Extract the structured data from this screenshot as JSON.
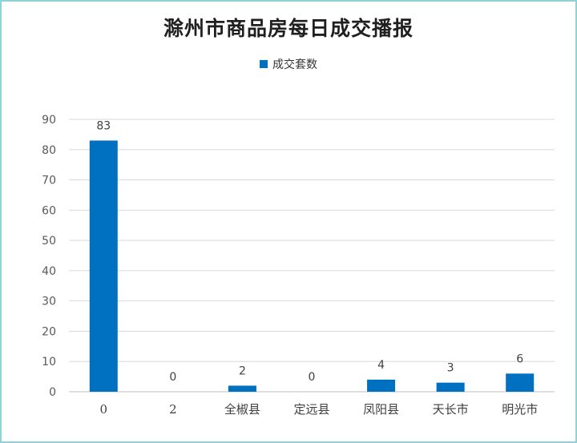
{
  "chart_data": {
    "type": "bar",
    "title": "滁州市商品房每日成交播报",
    "legend": {
      "position": "top-center",
      "entries": [
        "成交套数"
      ]
    },
    "categories": [
      "0",
      "2",
      "全椒县",
      "定远县",
      "凤阳县",
      "天长市",
      "明光市"
    ],
    "series": [
      {
        "name": "成交套数",
        "values": [
          83,
          0,
          2,
          0,
          4,
          3,
          6
        ],
        "color": "#0070c0"
      }
    ],
    "yticks": [
      0,
      10,
      20,
      30,
      40,
      50,
      60,
      70,
      80,
      90
    ],
    "ylim": [
      0,
      90
    ],
    "grid": true,
    "data_labels": true
  }
}
